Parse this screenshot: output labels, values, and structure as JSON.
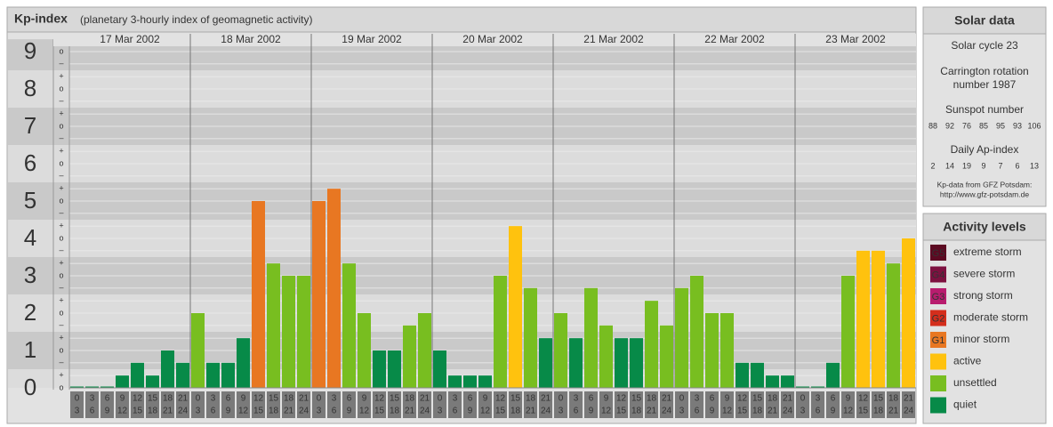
{
  "chart_data": {
    "type": "bar",
    "title": "Kp-index",
    "subtitle": "(planetary 3-hourly index of geomagnetic activity)",
    "ylim": [
      0,
      9.33
    ],
    "yticks": [
      0,
      1,
      2,
      3,
      4,
      5,
      6,
      7,
      8,
      9
    ],
    "minor_yticks": [
      {
        "value": 0,
        "label": "o"
      },
      {
        "value": 0.33,
        "label": "+"
      },
      {
        "value": 0.67,
        "label": "–"
      },
      {
        "value": 1,
        "label": "o"
      },
      {
        "value": 1.33,
        "label": "+"
      },
      {
        "value": 1.67,
        "label": "–"
      },
      {
        "value": 2,
        "label": "o"
      },
      {
        "value": 2.33,
        "label": "+"
      },
      {
        "value": 2.67,
        "label": "–"
      },
      {
        "value": 3,
        "label": "o"
      },
      {
        "value": 3.33,
        "label": "+"
      },
      {
        "value": 3.67,
        "label": "–"
      },
      {
        "value": 4,
        "label": "o"
      },
      {
        "value": 4.33,
        "label": "+"
      },
      {
        "value": 4.67,
        "label": "–"
      },
      {
        "value": 5,
        "label": "o"
      },
      {
        "value": 5.33,
        "label": "+"
      },
      {
        "value": 5.67,
        "label": "–"
      },
      {
        "value": 6,
        "label": "o"
      },
      {
        "value": 6.33,
        "label": "+"
      },
      {
        "value": 6.67,
        "label": "–"
      },
      {
        "value": 7,
        "label": "o"
      },
      {
        "value": 7.33,
        "label": "+"
      },
      {
        "value": 7.67,
        "label": "–"
      },
      {
        "value": 8,
        "label": "o"
      },
      {
        "value": 8.33,
        "label": "+"
      },
      {
        "value": 8.67,
        "label": "–"
      },
      {
        "value": 9,
        "label": "o"
      }
    ],
    "grid": true,
    "hours_start": [
      "0",
      "3",
      "6",
      "9",
      "12",
      "15",
      "18",
      "21"
    ],
    "hours_end": [
      "3",
      "6",
      "9",
      "12",
      "15",
      "18",
      "21",
      "24"
    ],
    "days": [
      {
        "date": "17 Mar 2002",
        "values": [
          0,
          0,
          0,
          0.33,
          0.67,
          0.33,
          1,
          0.67
        ],
        "colors": [
          "#078a48",
          "#078a48",
          "#078a48",
          "#078a48",
          "#078a48",
          "#078a48",
          "#078a48",
          "#078a48"
        ]
      },
      {
        "date": "18 Mar 2002",
        "values": [
          2,
          0.67,
          0.67,
          1.33,
          5,
          3.33,
          3,
          3
        ],
        "colors": [
          "#78be20",
          "#078a48",
          "#078a48",
          "#078a48",
          "#e87722",
          "#78be20",
          "#78be20",
          "#78be20"
        ]
      },
      {
        "date": "19 Mar 2002",
        "values": [
          5,
          5.33,
          3.33,
          2,
          1,
          1,
          1.67,
          2
        ],
        "colors": [
          "#e87722",
          "#e87722",
          "#78be20",
          "#78be20",
          "#078a48",
          "#078a48",
          "#78be20",
          "#78be20"
        ]
      },
      {
        "date": "20 Mar 2002",
        "values": [
          1,
          0.33,
          0.33,
          0.33,
          3,
          4.33,
          2.67,
          1.33
        ],
        "colors": [
          "#078a48",
          "#078a48",
          "#078a48",
          "#078a48",
          "#78be20",
          "#ffc20e",
          "#78be20",
          "#078a48"
        ]
      },
      {
        "date": "21 Mar 2002",
        "values": [
          2,
          1.33,
          2.67,
          1.67,
          1.33,
          1.33,
          2.33,
          1.67
        ],
        "colors": [
          "#78be20",
          "#078a48",
          "#78be20",
          "#78be20",
          "#078a48",
          "#078a48",
          "#78be20",
          "#78be20"
        ]
      },
      {
        "date": "22 Mar 2002",
        "values": [
          2.67,
          3,
          2,
          2,
          0.67,
          0.67,
          0.33,
          0.33
        ],
        "colors": [
          "#78be20",
          "#78be20",
          "#78be20",
          "#78be20",
          "#078a48",
          "#078a48",
          "#078a48",
          "#078a48"
        ]
      },
      {
        "date": "23 Mar 2002",
        "values": [
          0,
          0,
          0.67,
          3,
          3.67,
          3.67,
          3.33,
          4
        ],
        "colors": [
          "#078a48",
          "#078a48",
          "#078a48",
          "#78be20",
          "#ffc20e",
          "#ffc20e",
          "#78be20",
          "#ffc20e"
        ]
      }
    ]
  },
  "solar_data": {
    "title": "Solar data",
    "cycle": "Solar cycle 23",
    "rotation": [
      "Carrington rotation",
      "number 1987"
    ],
    "sunspot_title": "Sunspot number",
    "sunspot_numbers": [
      88,
      92,
      76,
      85,
      95,
      93,
      106
    ],
    "ap_title": "Daily Ap-index",
    "ap_values": [
      2,
      14,
      19,
      9,
      7,
      6,
      13
    ],
    "source": [
      "Kp-data from GFZ Potsdam:",
      "http://www.gfz-potsdam.de"
    ]
  },
  "activity_levels": {
    "title": "Activity levels",
    "items": [
      {
        "code": "G5",
        "label": "extreme storm",
        "color": "#5c0a22"
      },
      {
        "code": "G4",
        "label": "severe storm",
        "color": "#7d1140"
      },
      {
        "code": "G3",
        "label": "strong storm",
        "color": "#b81c6e"
      },
      {
        "code": "G2",
        "label": "moderate storm",
        "color": "#d42e1c"
      },
      {
        "code": "G1",
        "label": "minor storm",
        "color": "#e87722"
      },
      {
        "label": "active",
        "color": "#ffc20e"
      },
      {
        "label": "unsettled",
        "color": "#78be20"
      },
      {
        "label": "quiet",
        "color": "#078a48"
      }
    ]
  }
}
